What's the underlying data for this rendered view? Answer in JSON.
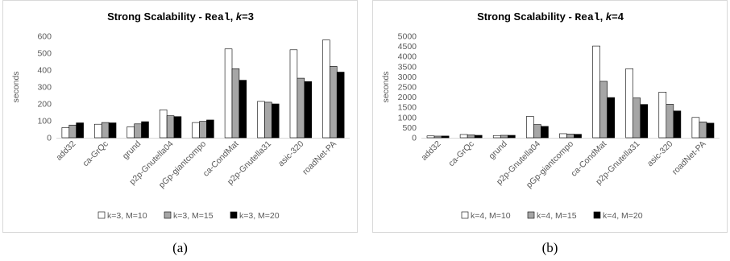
{
  "captions": [
    "(a)",
    "(b)"
  ],
  "chart_data": [
    {
      "type": "bar",
      "title_prefix": "Strong Scalability - ",
      "title_dataset": "Real",
      "title_sep": ", ",
      "title_k": "k",
      "title_suffix": "=3",
      "ylabel": "seconds",
      "ylim": [
        0,
        600
      ],
      "yticks": [
        "0",
        "100",
        "200",
        "300",
        "400",
        "500",
        "600"
      ],
      "categories": [
        "add32",
        "ca-GrQc",
        "grund",
        "p2p-Gnutella04",
        "pGp-giantcompo",
        "ca-CondMat",
        "p2p-Gnutella31",
        "asic-320",
        "roadNet-PA"
      ],
      "series": [
        {
          "name": "k=3, M=10",
          "color": "#ffffff",
          "values": [
            60,
            80,
            65,
            165,
            90,
            525,
            215,
            520,
            578
          ]
        },
        {
          "name": "k=3, M=15",
          "color": "#a6a6a6",
          "values": [
            75,
            90,
            82,
            130,
            97,
            408,
            210,
            352,
            422
          ]
        },
        {
          "name": "k=3, M=20",
          "color": "#000000",
          "values": [
            88,
            88,
            95,
            125,
            105,
            340,
            200,
            332,
            388
          ]
        }
      ],
      "legend": "bottom",
      "grid": false
    },
    {
      "type": "bar",
      "title_prefix": "Strong Scalability - ",
      "title_dataset": "Real",
      "title_sep": ", ",
      "title_k": "k",
      "title_suffix": "=4",
      "ylabel": "seconds",
      "ylim": [
        0,
        5000
      ],
      "yticks": [
        "0",
        "500",
        "1000",
        "1500",
        "2000",
        "2500",
        "3000",
        "3500",
        "4000",
        "4500",
        "5000"
      ],
      "categories": [
        "add32",
        "ca-GrQc",
        "grund",
        "p2p-Gnutella04",
        "pGp-giantcompo",
        "ca-CondMat",
        "p2p-Gnutella31",
        "asic-320",
        "roadNet-PA"
      ],
      "series": [
        {
          "name": "k=4, M=10",
          "color": "#ffffff",
          "values": [
            90,
            160,
            110,
            1050,
            200,
            4520,
            3400,
            2250,
            1000
          ]
        },
        {
          "name": "k=4, M=15",
          "color": "#a6a6a6",
          "values": [
            80,
            140,
            120,
            650,
            180,
            2780,
            1960,
            1650,
            780
          ]
        },
        {
          "name": "k=4, M=20",
          "color": "#000000",
          "values": [
            85,
            120,
            120,
            560,
            170,
            1980,
            1640,
            1320,
            720
          ]
        }
      ],
      "legend": "bottom",
      "grid": false
    }
  ]
}
